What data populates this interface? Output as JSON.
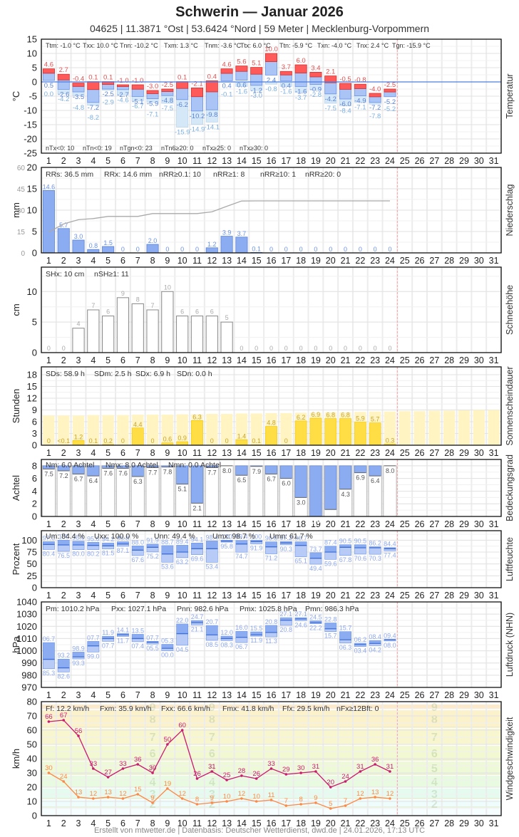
{
  "header": {
    "title": "Schwerin  —  Januar 2026",
    "subtitle": "04625  |  11.3871 °Ost  |  53.6424 °Nord  |  59 Meter  |  Mecklenburg-Vorpommern"
  },
  "footer": "Erstellt von mtwetter.de | Datenbasis: Deutscher Wetterdienst, dwd.de | 24.01.2026, 17:13 UTC",
  "days": [
    1,
    2,
    3,
    4,
    5,
    6,
    7,
    8,
    9,
    10,
    11,
    12,
    13,
    14,
    15,
    16,
    17,
    18,
    19,
    20,
    21,
    22,
    23,
    24,
    25,
    26,
    27,
    28,
    29,
    30,
    31
  ],
  "current_day": 24,
  "colors": {
    "tmax": "#ff5a5a",
    "tmin": "#a9c4f5",
    "tg": "#d4e8f7",
    "line": "#4a7de0",
    "rain": "#8cacf2",
    "sun": "#ffdd44",
    "sunbg": "#fff4c2",
    "cloud": "#8cacf2",
    "wind_max": "#cc1a6e",
    "wind_avg": "#ff8844",
    "today": "#f2a6a6"
  },
  "chart_data": [
    {
      "id": "temperatur",
      "type": "bar",
      "title": "Temperatur",
      "ylabel": "°C",
      "ylim": [
        -25,
        15
      ],
      "yticks": [
        15,
        10,
        5,
        0,
        -5,
        -10,
        -15,
        -20,
        -25
      ],
      "stats_top": [
        "Ttm: -1.0 °C",
        "Txx: 10.0 °C",
        "Tnn: -10.2 °C",
        "Txm: 1.3 °C",
        "Tnm: -3.6 °C",
        "Ttx: 6.0 °C",
        "Ttn: -5.9 °C",
        "Txn: -4.0 °C",
        "Tnx: 2.4 °C",
        "Tgn: -15.9 °C"
      ],
      "stats_bottom": [
        "nTx<0: 10",
        "nTn<0: 19",
        "nTgn<0: 23",
        "nTn6≥20: 0",
        "nTx≥25: 0",
        "nTx≥30: 0"
      ],
      "tmax": [
        4.6,
        2.7,
        -0.4,
        0.1,
        0.1,
        -1.0,
        -1.0,
        -3.0,
        -2.5,
        0.1,
        -2.1,
        0.4,
        4.6,
        5.6,
        5.1,
        10.0,
        3.7,
        6.0,
        3.4,
        2.1,
        -0.5,
        -0.8,
        -4.0,
        -2.5
      ],
      "tmin": [
        0.5,
        -2.6,
        -3.5,
        -7.2,
        -2.5,
        -2.7,
        -5.1,
        -5.9,
        -4.8,
        -6.2,
        -10.2,
        -9.8,
        0.4,
        0.6,
        -1.2,
        2.4,
        0.4,
        -1.6,
        -0.9,
        -4.2,
        -6.0,
        -4.9,
        -7.2,
        -5.2
      ],
      "tground": [
        0.0,
        -4.2,
        -4.8,
        -8.2,
        -2.9,
        -4.6,
        -6.7,
        -7.1,
        -7.5,
        -15.9,
        -14.9,
        -14.1,
        -0.1,
        -1.6,
        -3.0,
        -0.8,
        -1.6,
        -3.7,
        -2.8,
        -7.5,
        -8.4,
        -7.1,
        -7.8,
        -5.2
      ]
    },
    {
      "id": "niederschlag",
      "type": "bar",
      "title": "Niederschlag",
      "ylabel": "mm",
      "ylim": [
        0,
        20
      ],
      "yticks": [
        0,
        5,
        10,
        15,
        20
      ],
      "yticks_secondary": [
        0,
        15,
        30,
        45,
        60
      ],
      "stats_top": [
        "RRs: 36.5 mm",
        "RRx: 14.6 mm",
        "nRR≥0.1: 10",
        "nRR≥1: 8",
        "nRR≥10: 1",
        "nRR≥20: 0"
      ],
      "values": [
        14.6,
        5.7,
        3.0,
        0.8,
        1.5,
        0,
        0,
        2.0,
        0,
        0,
        0,
        1.2,
        3.9,
        3.7,
        0.1,
        0,
        0,
        0,
        0,
        0,
        0,
        0,
        0,
        0
      ],
      "cumulative": [
        14.6,
        20.3,
        23.3,
        24.1,
        25.6,
        25.6,
        25.6,
        27.6,
        27.6,
        27.6,
        27.6,
        28.8,
        32.7,
        36.4,
        36.5,
        36.5,
        36.5,
        36.5,
        36.5,
        36.5,
        36.5,
        36.5,
        36.5,
        36.5
      ]
    },
    {
      "id": "schneehoehe",
      "type": "bar",
      "title": "Schneehöhe",
      "ylabel": "cm",
      "ylim": [
        0,
        14
      ],
      "yticks": [
        0,
        5,
        10
      ],
      "stats_top": [
        "SHx: 10 cm",
        "nSH≥1: 11"
      ],
      "values": [
        0,
        0,
        4,
        7,
        6,
        9,
        8,
        7,
        10,
        6,
        6,
        6,
        5,
        0,
        0,
        0,
        0,
        0,
        0,
        0,
        0,
        0,
        0,
        0
      ]
    },
    {
      "id": "sonnenscheindauer",
      "type": "bar",
      "title": "Sonnenscheindauer",
      "ylabel": "Stunden",
      "ylim": [
        0,
        20
      ],
      "yticks": [
        0,
        3,
        6,
        9,
        12,
        15,
        18
      ],
      "stats_top": [
        "SDs: 58.9 h",
        "SDm: 2.5 h",
        "SDx: 6.9 h",
        "SDn: 0.0 h"
      ],
      "values": [
        0,
        0.05,
        1.2,
        0.1,
        0.2,
        0,
        4.4,
        0,
        0.6,
        0.9,
        6.3,
        0,
        0,
        1.4,
        0.1,
        4.8,
        0,
        6.2,
        6.9,
        6.8,
        6.8,
        5.9,
        5.7,
        0.3
      ],
      "labels": [
        "0",
        "<0.1",
        "1.2",
        "0.1",
        "0.2",
        "0",
        "4.4",
        "0",
        "0.6",
        "0.9",
        "6.3",
        "0",
        "0",
        "1.4",
        "0.1",
        "4.8",
        "0",
        "6.2",
        "6.9",
        "6.8",
        "6.8",
        "5.9",
        "5.7",
        "0.3"
      ],
      "possible": [
        7.6,
        7.6,
        7.6,
        7.7,
        7.7,
        7.7,
        7.8,
        7.8,
        7.8,
        7.9,
        7.9,
        8.0,
        8.0,
        8.1,
        8.1,
        8.2,
        8.2,
        8.3,
        8.3,
        8.4,
        8.4,
        8.5,
        8.6,
        8.6,
        8.7,
        8.7,
        8.8,
        8.8,
        8.9,
        9.0,
        9.0
      ]
    },
    {
      "id": "bedeckungsgrad",
      "type": "bar",
      "title": "Bedeckungsgrad",
      "ylabel": "Achtel",
      "ylim": [
        0,
        9
      ],
      "yticks": [
        0,
        2,
        4,
        6,
        8
      ],
      "stats_top": [
        "Nm: 6.0 Achtel",
        "Nmx: 8.0 Achtel",
        "Nmn: 0.0 Achtel"
      ],
      "values": [
        7.5,
        7.2,
        6.7,
        6.4,
        7.6,
        7.6,
        6.3,
        7.7,
        7.8,
        5.1,
        2.1,
        7.7,
        8.0,
        6.5,
        7.9,
        6.7,
        6.0,
        3.0,
        0.0,
        1.1,
        4.3,
        6.9,
        6.4,
        8.0
      ]
    },
    {
      "id": "luftfeuchte",
      "type": "bar",
      "title": "Luftfeuchte",
      "ylabel": "Prozent",
      "ylim": [
        0,
        120
      ],
      "yticks": [
        0,
        25,
        50,
        75,
        100
      ],
      "stats_top": [
        "Um: 84.4 %",
        "Uxx: 100.0 %",
        "Unn: 49.4 %",
        "Umx: 98.7 %",
        "Umn: 61.7 %"
      ],
      "max": [
        97.0,
        100,
        98.0,
        95.6,
        94.2,
        96.8,
        88.0,
        91.9,
        88.7,
        89.4,
        94.1,
        98.4,
        100,
        99.4,
        100,
        96.6,
        97.2,
        96.7,
        73.7,
        87.4,
        90.5,
        90.5,
        86.2,
        84.4
      ],
      "min": [
        80.4,
        76.5,
        80.0,
        80.2,
        81.5,
        87.1,
        67.6,
        75.2,
        53.6,
        63.2,
        69.6,
        53.4,
        95.8,
        74.7,
        91.9,
        71.2,
        90.3,
        65.1,
        49.4,
        59.6,
        67.8,
        70.6,
        70.3,
        77.4
      ],
      "mean": [
        91,
        90,
        90,
        89,
        88,
        92,
        79,
        85,
        71,
        75,
        82,
        82,
        98,
        92,
        97,
        86,
        94,
        89,
        62,
        75,
        85,
        84,
        84,
        82
      ]
    },
    {
      "id": "luftdruck",
      "type": "bar",
      "title": "Luftdruck (NHN)",
      "ylabel": "hPa",
      "ylim": [
        970,
        1040
      ],
      "yticks": [
        970,
        980,
        990,
        1000,
        1010,
        1020,
        1030,
        1040
      ],
      "stats_top": [
        "Pm: 1010.2 hPa",
        "Pxx: 1027.1 hPa",
        "Pnn: 982.6 hPa",
        "Pmx: 1025.8 hPa",
        "Pmn: 986.3 hPa"
      ],
      "max": [
        1006.7,
        993.2,
        998.9,
        1007.7,
        1011.9,
        1014.1,
        1013.5,
        1007.7,
        1005.3,
        1022.0,
        1024.7,
        1020.7,
        1012.0,
        1016.0,
        1015.5,
        1020.8,
        1027.1,
        1027.1,
        1024.5,
        1022.8,
        1015.7,
        1006.2,
        1008.4,
        1009.4
      ],
      "min": [
        985.3,
        982.6,
        993.3,
        999.0,
        1007.7,
        1011.7,
        1007.4,
        1005.5,
        1000.0,
        1004.5,
        1021.1,
        1008.5,
        1008.3,
        1006.7,
        1011.9,
        1011.3,
        1020.8,
        1024.6,
        1022.2,
        1015.7,
        1006.3,
        1003.4,
        1004.2,
        1008.0
      ],
      "mean": [
        993,
        986,
        995,
        1004,
        1010,
        1013,
        1010,
        1007,
        1002,
        1014,
        1023,
        1013,
        1010,
        1011,
        1013,
        1015,
        1025,
        1026,
        1023,
        1018,
        1009,
        1005,
        1006,
        1009
      ],
      "max_labels": [
        "06.7",
        "93.2",
        "98.9",
        "07.7",
        "11.9",
        "14.1",
        "13.5",
        "07.7",
        "05.3",
        "22.0",
        "24.7",
        "20.7",
        "12.0",
        "16.0",
        "15.5",
        "20.8",
        "27.1",
        "27.1",
        "24.5",
        "22.8",
        "15.7",
        "06.2",
        "08.4",
        "09.4"
      ],
      "min_labels": [
        "85.3",
        "82.6",
        "93.3",
        "99.0",
        "07.7",
        "11.7",
        "07.4",
        "05.5",
        "00.0",
        "04.5",
        "21.1",
        "08.5",
        "08.3",
        "06.7",
        "11.9",
        "11.3",
        "20.8",
        "24.6",
        "22.2",
        "15.7",
        "06.3",
        "03.4",
        "04.2",
        "08.0"
      ]
    },
    {
      "id": "windgeschwindigkeit",
      "type": "line",
      "title": "Windgeschwindigkeit",
      "ylabel": "km/h",
      "ylim": [
        0,
        80
      ],
      "yticks": [
        0,
        10,
        20,
        30,
        40,
        50,
        60,
        70,
        80
      ],
      "stats_top": [
        "Ff: 12.2 km/h",
        "Fxm: 35.9 km/h",
        "Fxx: 66.6 km/h",
        "Fmx: 41.8 km/h",
        "Ffx: 29.5 km/h",
        "nFx≥12Bft: 0"
      ],
      "series": [
        {
          "name": "Fx (Böen)",
          "values": [
            66,
            67,
            56,
            33,
            27,
            33,
            36,
            30,
            50,
            60,
            26,
            31,
            25,
            28,
            26,
            33,
            29,
            30,
            31,
            20,
            24,
            31,
            36,
            31
          ]
        },
        {
          "name": "Ff (Mittel)",
          "values": [
            30,
            24,
            13,
            12,
            13,
            12,
            15,
            9,
            19,
            12,
            8,
            9,
            10,
            12,
            10,
            11,
            7,
            8,
            9,
            5,
            7,
            12,
            13,
            12
          ]
        }
      ],
      "beaufort": [
        {
          "bft": 2,
          "from": 6,
          "to": 11,
          "color": "#eefcfc"
        },
        {
          "bft": 3,
          "from": 12,
          "to": 19,
          "color": "#e6fbf0"
        },
        {
          "bft": 4,
          "from": 20,
          "to": 28,
          "color": "#e8fbe0"
        },
        {
          "bft": 5,
          "from": 29,
          "to": 38,
          "color": "#eef9d8"
        },
        {
          "bft": 6,
          "from": 39,
          "to": 49,
          "color": "#f2f8d2"
        },
        {
          "bft": 7,
          "from": 50,
          "to": 61,
          "color": "#f7f6cf"
        },
        {
          "bft": 8,
          "from": 62,
          "to": 74,
          "color": "#fbf2cc"
        },
        {
          "bft": 9,
          "from": 75,
          "to": 88,
          "color": "#fdeacb"
        }
      ],
      "beaufort_low": {
        "from": 0,
        "to": 6,
        "color": "#f6feff"
      }
    }
  ]
}
